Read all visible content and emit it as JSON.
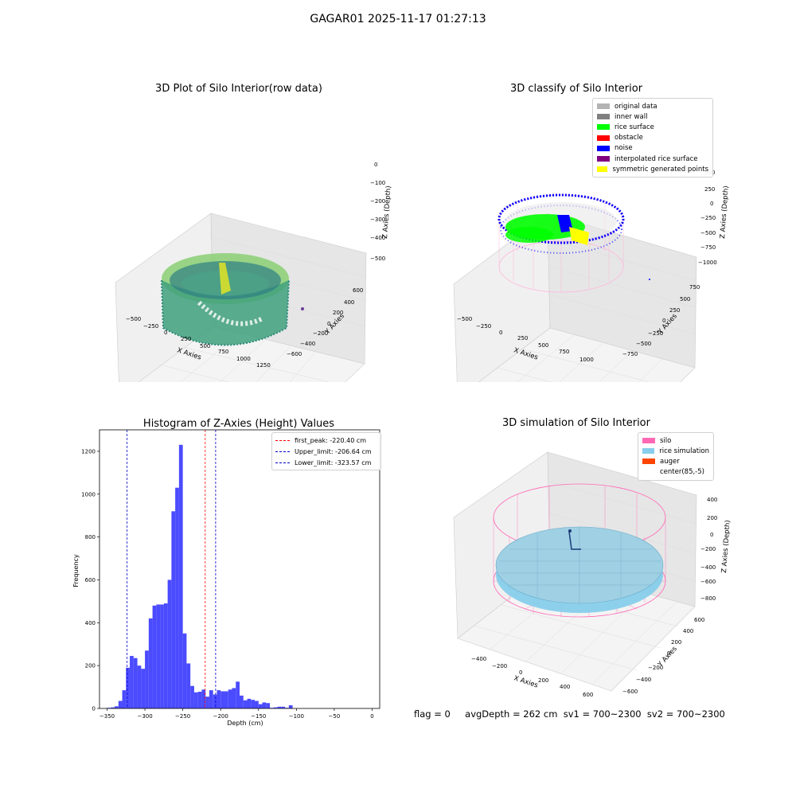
{
  "figure": {
    "title": "GAGAR01 2025-11-17 01:27:13"
  },
  "panel_raw": {
    "title": "3D Plot of Silo Interior(row data)",
    "xlabel": "X Axies",
    "ylabel": "Y Axies",
    "zlabel": "Z Axies (Depth)",
    "x_ticks": [
      "−500",
      "−250",
      "0",
      "250",
      "500",
      "750",
      "1000",
      "1250"
    ],
    "y_ticks": [
      "−600",
      "−400",
      "−200",
      "0",
      "200",
      "400",
      "600"
    ],
    "z_ticks": [
      "0",
      "−100",
      "−200",
      "−300",
      "−400",
      "−500"
    ]
  },
  "panel_classify": {
    "title": "3D classify of Silo Interior",
    "xlabel": "X Axies",
    "ylabel": "Y Axies",
    "zlabel": "Z Axies (Depth)",
    "x_ticks": [
      "−500",
      "−250",
      "0",
      "250",
      "500",
      "750",
      "1000"
    ],
    "y_ticks": [
      "−750",
      "−500",
      "−250",
      "0",
      "250",
      "500",
      "750"
    ],
    "z_ticks": [
      "500",
      "250",
      "0",
      "−250",
      "−500",
      "−750",
      "−1000"
    ],
    "legend": [
      {
        "label": "original data",
        "color": "#b3b3b3"
      },
      {
        "label": "inner wall",
        "color": "#808080"
      },
      {
        "label": "rice surface",
        "color": "#00ff00"
      },
      {
        "label": "obstacle",
        "color": "#ff0000"
      },
      {
        "label": "noise",
        "color": "#0000ff"
      },
      {
        "label": "interpolated rice surface",
        "color": "#800080"
      },
      {
        "label": "symmetric generated points",
        "color": "#ffff00"
      }
    ]
  },
  "panel_simulation": {
    "title": "3D simulation of Silo Interior",
    "xlabel": "X Axies",
    "ylabel": "Y Axies",
    "zlabel": "Z Axies (Depth)",
    "x_ticks": [
      "−400",
      "−200",
      "0",
      "200",
      "400",
      "600"
    ],
    "y_ticks": [
      "−600",
      "−400",
      "−200",
      "0",
      "200",
      "400",
      "600"
    ],
    "z_ticks": [
      "400",
      "200",
      "0",
      "−200",
      "−400",
      "−600",
      "−800"
    ],
    "legend": [
      {
        "label": "silo",
        "color": "#ff69b4"
      },
      {
        "label": "rice simulation",
        "color": "#87ceeb"
      },
      {
        "label": "auger",
        "color": "#ff4500"
      },
      {
        "label": "center(85,-5)",
        "color": ""
      }
    ]
  },
  "chart_data": {
    "type": "bar",
    "title": "Histogram of Z-Axies (Height) Values",
    "xlabel": "Depth (cm)",
    "ylabel": "Frequency",
    "xlim": [
      -360,
      10
    ],
    "ylim": [
      0,
      1300
    ],
    "x_ticks": [
      -350,
      -300,
      -250,
      -200,
      -150,
      -100,
      -50,
      0
    ],
    "y_ticks": [
      0,
      200,
      400,
      600,
      800,
      1000,
      1200
    ],
    "bin_width": 5,
    "bins_start": [
      -350,
      -345,
      -340,
      -335,
      -330,
      -325,
      -320,
      -315,
      -310,
      -305,
      -300,
      -295,
      -290,
      -285,
      -280,
      -275,
      -270,
      -265,
      -260,
      -255,
      -250,
      -245,
      -240,
      -235,
      -230,
      -225,
      -220,
      -215,
      -210,
      -205,
      -200,
      -195,
      -190,
      -185,
      -180,
      -175,
      -170,
      -165,
      -160,
      -155,
      -150,
      -145,
      -140,
      -135,
      -130,
      -125,
      -120,
      -115,
      -110,
      -105,
      -100,
      -95,
      -90,
      -85,
      -80,
      -75,
      -70,
      -65,
      -60,
      -55,
      -50,
      -45,
      -40,
      -35,
      -30,
      -25,
      -20,
      -15,
      -10,
      -5,
      0
    ],
    "values": [
      3,
      5,
      10,
      35,
      85,
      190,
      245,
      235,
      200,
      185,
      270,
      420,
      480,
      485,
      485,
      490,
      600,
      920,
      1030,
      1230,
      350,
      210,
      105,
      75,
      78,
      88,
      55,
      85,
      65,
      85,
      80,
      80,
      88,
      95,
      125,
      60,
      38,
      45,
      40,
      35,
      20,
      28,
      25,
      3,
      5,
      8,
      8,
      3,
      15,
      0,
      0,
      0,
      0,
      0,
      0,
      0,
      0,
      0,
      0,
      0,
      0,
      0,
      0,
      0,
      0,
      0,
      0,
      0,
      0,
      0,
      0
    ],
    "bar_color": "#4b4bff",
    "vlines": [
      {
        "label": "first_peak: -220.40 cm",
        "x": -220.4,
        "color": "#ff0000"
      },
      {
        "label": "Upper_limit: -206.64 cm",
        "x": -206.64,
        "color": "#0000cc"
      },
      {
        "label": "Lower_limit: -323.57 cm",
        "x": -323.57,
        "color": "#0000cc"
      }
    ]
  },
  "footer": {
    "flag": "flag = 0",
    "avg": "avgDepth = 262 cm  sv1 = 700~2300  sv2 = 700~2300"
  }
}
